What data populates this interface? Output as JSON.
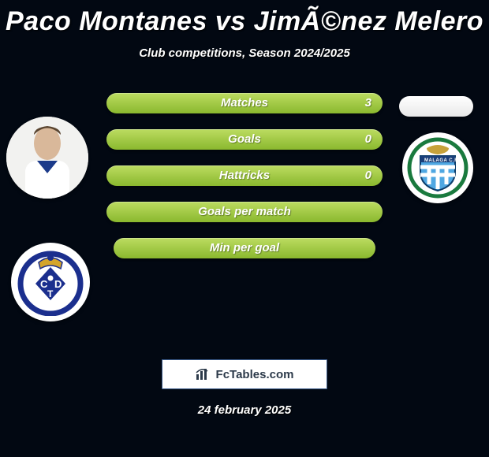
{
  "title": "Paco Montanes vs JimÃ©nez Melero",
  "subtitle": "Club competitions, Season 2024/2025",
  "date": "24 february 2025",
  "fctables_label": "FcTables.com",
  "stats": [
    {
      "label": "Matches",
      "value_right": "3",
      "narrow": false
    },
    {
      "label": "Goals",
      "value_right": "0",
      "narrow": false
    },
    {
      "label": "Hattricks",
      "value_right": "0",
      "narrow": false
    },
    {
      "label": "Goals per match",
      "value_right": "",
      "narrow": false
    },
    {
      "label": "Min per goal",
      "value_right": "",
      "narrow": true
    }
  ],
  "style": {
    "background_color": "#020812",
    "bar_gradient_top": "#bcdc61",
    "bar_gradient_bottom": "#8ab82e",
    "text_color": "#ffffff",
    "title_fontsize": 34,
    "subtitle_fontsize": 15,
    "stat_label_fontsize": 15,
    "box_border_color": "#3a5a8a"
  },
  "icons": {
    "left_player_avatar": "player-photo",
    "left_club_badge": "tenerife-badge",
    "right_oval": "blank-oval",
    "right_club_badge": "malaga-badge",
    "chart_icon": "bar-chart-icon"
  }
}
